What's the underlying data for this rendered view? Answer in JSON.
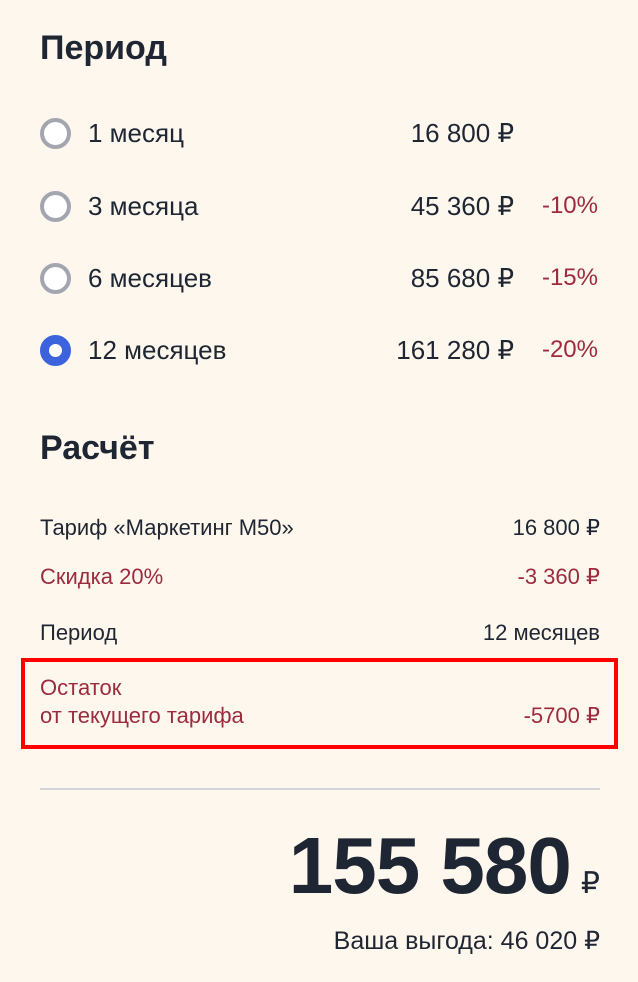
{
  "period": {
    "title": "Период",
    "options": [
      {
        "label": "1 месяц",
        "price": "16 800 ₽",
        "discount": "",
        "selected": false
      },
      {
        "label": "3 месяца",
        "price": "45 360 ₽",
        "discount": "-10%",
        "selected": false
      },
      {
        "label": "6 месяцев",
        "price": "85 680 ₽",
        "discount": "-15%",
        "selected": false
      },
      {
        "label": "12 месяцев",
        "price": "161 280 ₽",
        "discount": "-20%",
        "selected": true
      }
    ]
  },
  "calc": {
    "title": "Расчёт",
    "tariff_label": "Тариф «Маркетинг М50»",
    "tariff_value": "16 800 ₽",
    "discount_label": "Скидка 20%",
    "discount_value": "-3 360 ₽",
    "period_label": "Период",
    "period_value": "12 месяцев",
    "remainder_label_1": "Остаток",
    "remainder_label_2": "от текущего тарифа",
    "remainder_value": "-5700 ₽"
  },
  "total": {
    "amount": "155 580",
    "currency": "₽",
    "benefit": "Ваша выгода: 46 020 ₽"
  },
  "colors": {
    "accent": "#3c63dd",
    "discount": "#9c2b3e",
    "text": "#1f2633",
    "background": "#fdf7ed",
    "highlight": "#ff0000"
  }
}
